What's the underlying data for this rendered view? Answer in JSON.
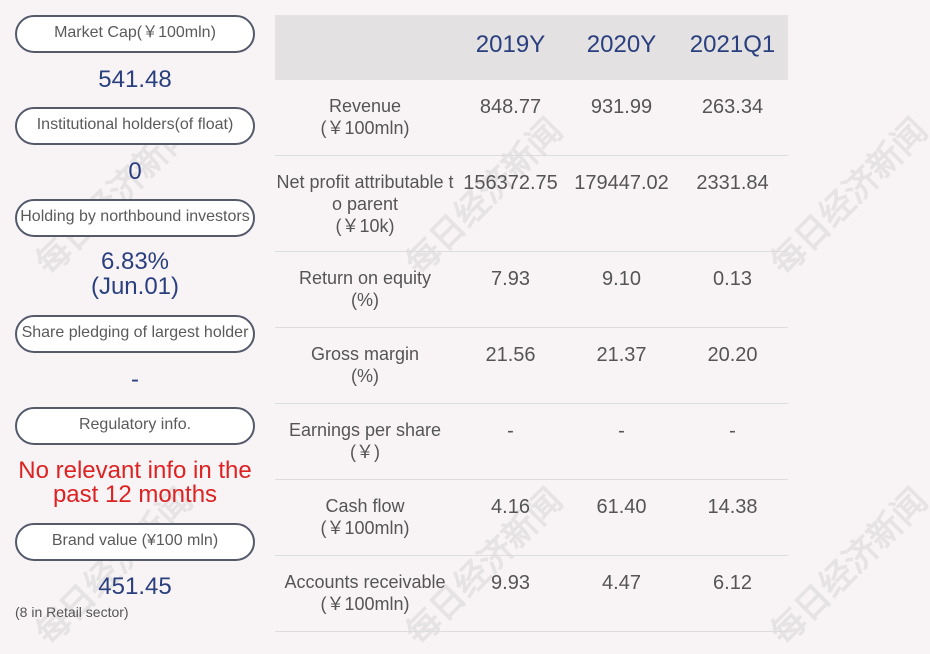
{
  "left": {
    "market_cap": {
      "label": "Market Cap(￥100mln)",
      "value": "541.48"
    },
    "institutional": {
      "label": "Institutional holders(of float)",
      "value": "0"
    },
    "northbound": {
      "label": "Holding by northbound investors",
      "value": "6.83%",
      "date": "(Jun.01)"
    },
    "pledging": {
      "label": "Share pledging of largest holder",
      "value": "-"
    },
    "regulatory": {
      "label": "Regulatory info.",
      "value_line1": "No relevant info in the",
      "value_line2": "past 12 months"
    },
    "brand": {
      "label": "Brand value (¥100 mln)",
      "value": "451.45",
      "note": "(8 in Retail sector)"
    }
  },
  "table": {
    "headers": [
      "2019Y",
      "2020Y",
      "2021Q1"
    ],
    "rows": [
      {
        "label": "Revenue",
        "unit": "(￥100mln)",
        "values": [
          "848.77",
          "931.99",
          "263.34"
        ]
      },
      {
        "label": "Net profit attributable t",
        "label2": "o parent",
        "unit": "(￥10k)",
        "values": [
          "156372.75",
          "179447.02",
          "2331.84"
        ]
      },
      {
        "label": "Return on equity",
        "unit": "(%)",
        "values": [
          "7.93",
          "9.10",
          "0.13"
        ]
      },
      {
        "label": "Gross margin",
        "unit": "(%)",
        "values": [
          "21.56",
          "21.37",
          "20.20"
        ]
      },
      {
        "label": "Earnings per share",
        "unit": "(￥)",
        "values": [
          "-",
          "-",
          "-"
        ]
      },
      {
        "label": "Cash flow",
        "unit": "(￥100mln)",
        "values": [
          "4.16",
          "61.40",
          "14.38"
        ]
      },
      {
        "label": "Accounts receivable",
        "unit": "(￥100mln)",
        "values": [
          "9.93",
          "4.47",
          "6.12"
        ]
      }
    ]
  },
  "watermark": "每日经济新闻"
}
